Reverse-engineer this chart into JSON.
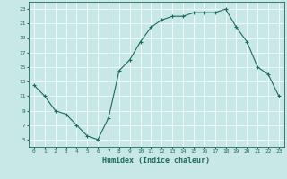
{
  "title": "",
  "xlabel": "Humidex (Indice chaleur)",
  "ylabel": "",
  "bg_color": "#c8e8e8",
  "line_color": "#1a6b5a",
  "marker_color": "#1a6b5a",
  "xlim": [
    -0.5,
    23.5
  ],
  "ylim": [
    4,
    24
  ],
  "yticks": [
    5,
    7,
    9,
    11,
    13,
    15,
    17,
    19,
    21,
    23
  ],
  "xticks": [
    0,
    1,
    2,
    3,
    4,
    5,
    6,
    7,
    8,
    9,
    10,
    11,
    12,
    13,
    14,
    15,
    16,
    17,
    18,
    19,
    20,
    21,
    22,
    23
  ],
  "x": [
    0,
    1,
    2,
    3,
    4,
    5,
    6,
    7,
    8,
    9,
    10,
    11,
    12,
    13,
    14,
    15,
    16,
    17,
    18,
    19,
    20,
    21,
    22,
    23
  ],
  "y": [
    12.5,
    11.0,
    9.0,
    8.5,
    7.0,
    5.5,
    5.0,
    8.0,
    14.5,
    16.0,
    18.5,
    20.5,
    21.5,
    22.0,
    22.0,
    22.5,
    22.5,
    22.5,
    23.0,
    20.5,
    18.5,
    15.0,
    14.0,
    11.0
  ]
}
